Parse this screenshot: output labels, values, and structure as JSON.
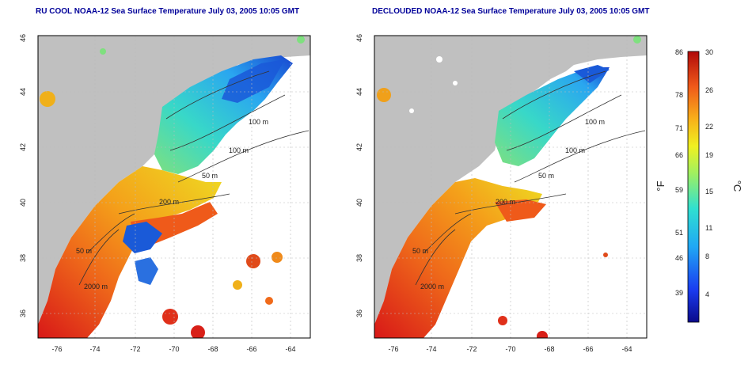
{
  "panels": [
    {
      "title": "RU COOL NOAA-12 Sea Surface Temperature July 03, 2005 10:05 GMT",
      "variant": "cool",
      "contours": [
        "100 m",
        "100 m",
        "50 m",
        "200 m",
        "50 m",
        "2000 m"
      ]
    },
    {
      "title": "DECLOUDED NOAA-12 Sea Surface Temperature July 03, 2005 10:05 GMT",
      "variant": "declouded",
      "contours": [
        "100 m",
        "100 m",
        "50 m",
        "200 m",
        "50 m",
        "2000 m"
      ]
    }
  ],
  "lon_ticks": [
    "-76",
    "-74",
    "-72",
    "-70",
    "-68",
    "-66",
    "-64"
  ],
  "lat_ticks": [
    "46",
    "44",
    "42",
    "40",
    "38",
    "36"
  ],
  "colorbar": {
    "fahrenheit_unit": "°F",
    "celsius_unit": "°C",
    "fahrenheit_ticks": [
      "86",
      "78",
      "71",
      "66",
      "59",
      "51",
      "46",
      "39"
    ],
    "celsius_ticks": [
      "30",
      "26",
      "22",
      "19",
      "15",
      "11",
      "8",
      "4"
    ]
  },
  "colors": {
    "land": "#c0c0c0",
    "cloud": "#ffffff",
    "warm": "#e8421a",
    "cool": "#1a5fd8",
    "title": "#000099"
  }
}
